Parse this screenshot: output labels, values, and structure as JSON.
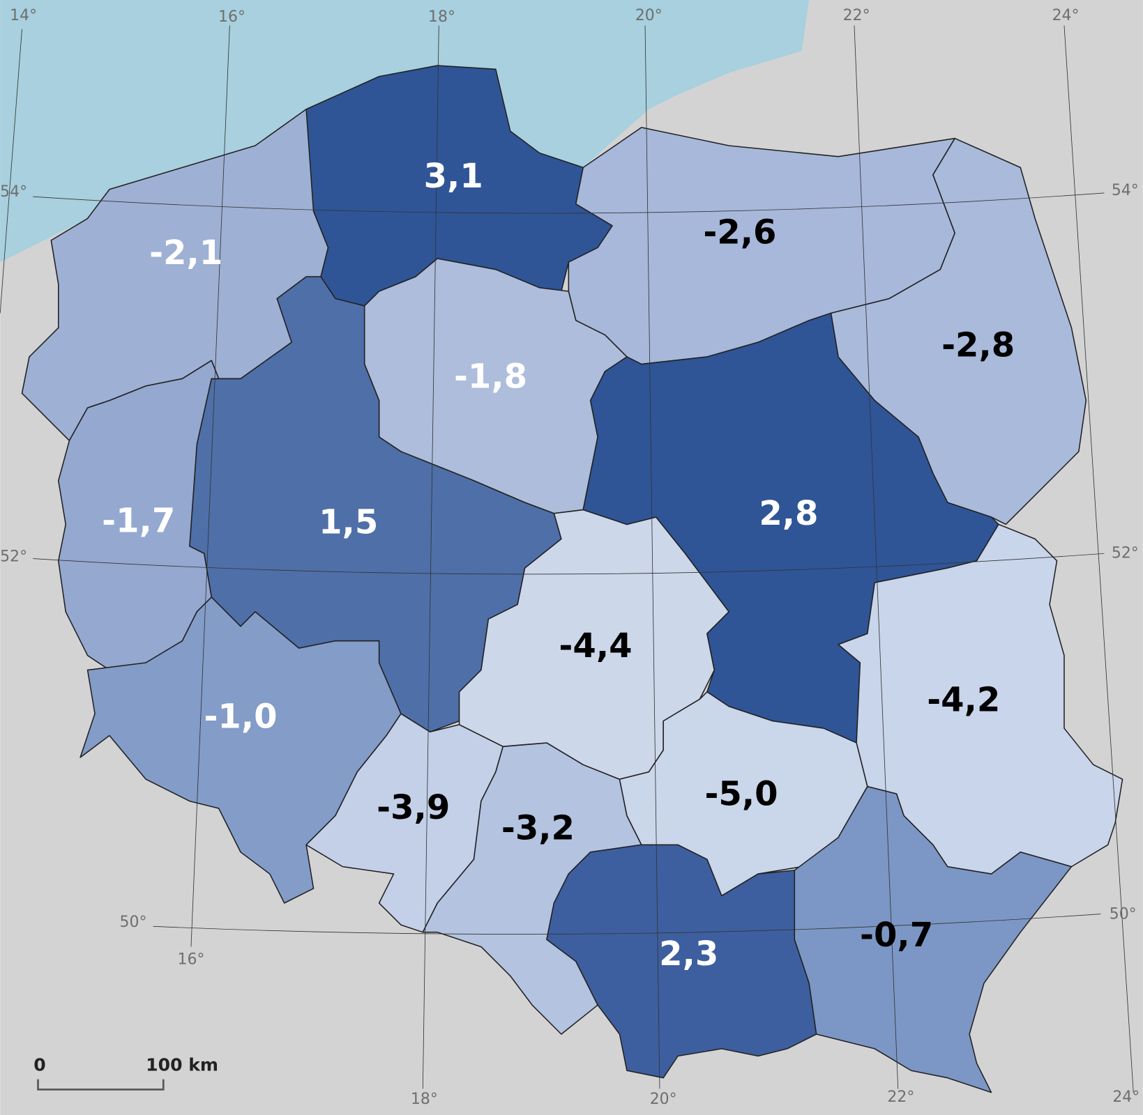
{
  "map": {
    "regions": [
      {
        "label": "3,1",
        "color": "#2f5597",
        "text_color": "#ffffff"
      },
      {
        "label": "-2,1",
        "color": "#9eb0d4",
        "text_color": "#ffffff"
      },
      {
        "label": "-2,6",
        "color": "#a7b8da",
        "text_color": "#000000"
      },
      {
        "label": "-2,8",
        "color": "#a9badb",
        "text_color": "#000000"
      },
      {
        "label": "-1,8",
        "color": "#adbddb",
        "text_color": "#ffffff"
      },
      {
        "label": "1,5",
        "color": "#4f6fa8",
        "text_color": "#ffffff"
      },
      {
        "label": "-1,7",
        "color": "#94a8d0",
        "text_color": "#ffffff"
      },
      {
        "label": "-1,0",
        "color": "#839cc8",
        "text_color": "#ffffff"
      },
      {
        "label": "-3,9",
        "color": "#c3d0e8",
        "text_color": "#000000"
      },
      {
        "label": "-3,2",
        "color": "#b3c3e0",
        "text_color": "#000000"
      },
      {
        "label": "-4,4",
        "color": "#ccd7ea",
        "text_color": "#000000"
      },
      {
        "label": "2,8",
        "color": "#2f5597",
        "text_color": "#ffffff"
      },
      {
        "label": "-4,2",
        "color": "#c9d5eb",
        "text_color": "#000000"
      },
      {
        "label": "-5,0",
        "color": "#cad6ea",
        "text_color": "#000000"
      },
      {
        "label": "2,3",
        "color": "#3d5f9f",
        "text_color": "#ffffff"
      },
      {
        "label": "-0,7",
        "color": "#7c97c5",
        "text_color": "#000000"
      }
    ],
    "graticule": {
      "top": [
        "14°",
        "16°",
        "18°",
        "20°",
        "22°",
        "24°"
      ],
      "bottom": [
        "16°",
        "18°",
        "20°",
        "22°",
        "24°"
      ],
      "left": [
        "54°",
        "52°",
        "50°"
      ],
      "right": [
        "54°",
        "52°",
        "50°"
      ]
    },
    "scale_bar": {
      "start": "0",
      "end": "100 km"
    }
  }
}
